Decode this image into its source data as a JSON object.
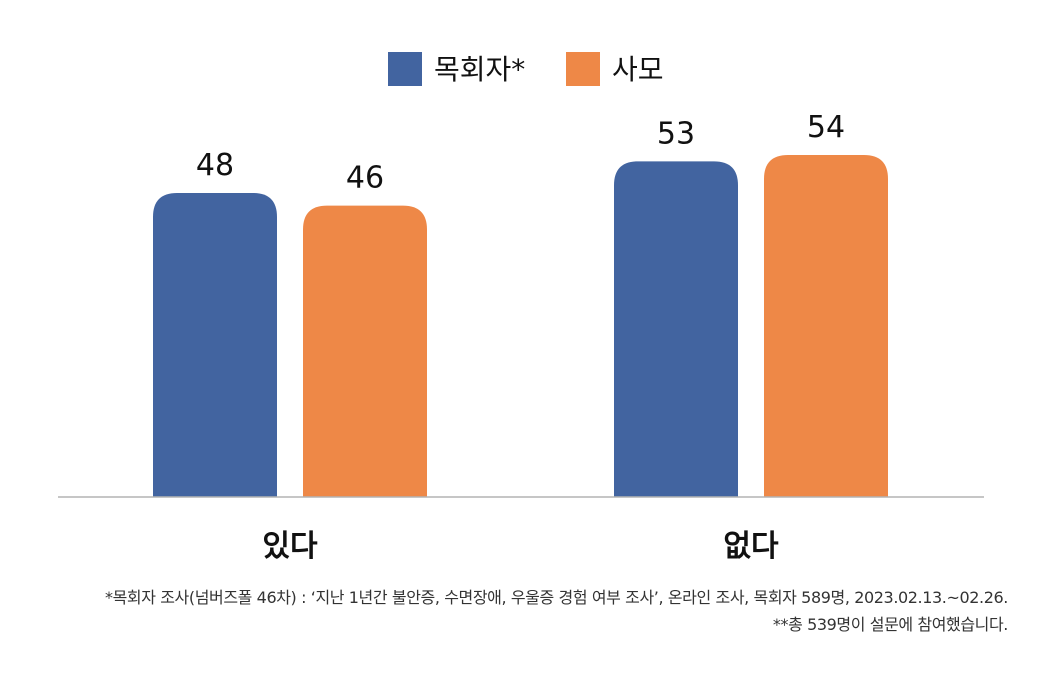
{
  "chart_data": {
    "type": "bar",
    "categories": [
      "있다",
      "없다"
    ],
    "series": [
      {
        "name": "목회자*",
        "values": [
          48,
          53
        ],
        "color": "#4264A0"
      },
      {
        "name": "사모",
        "values": [
          46,
          54
        ],
        "color": "#EE8847"
      }
    ],
    "ylim": [
      0,
      54
    ],
    "grid": false,
    "legend": "top-center",
    "data_labels": true
  },
  "footnotes": [
    "*목회자 조사(넘버즈폴 46차) : ‘지난 1년간 불안증, 수면장애, 우울증 경험 여부 조사’, 온라인 조사, 목회자 589명, 2023.02.13.~02.26.",
    "**총 539명이 설문에 참여했습니다."
  ]
}
